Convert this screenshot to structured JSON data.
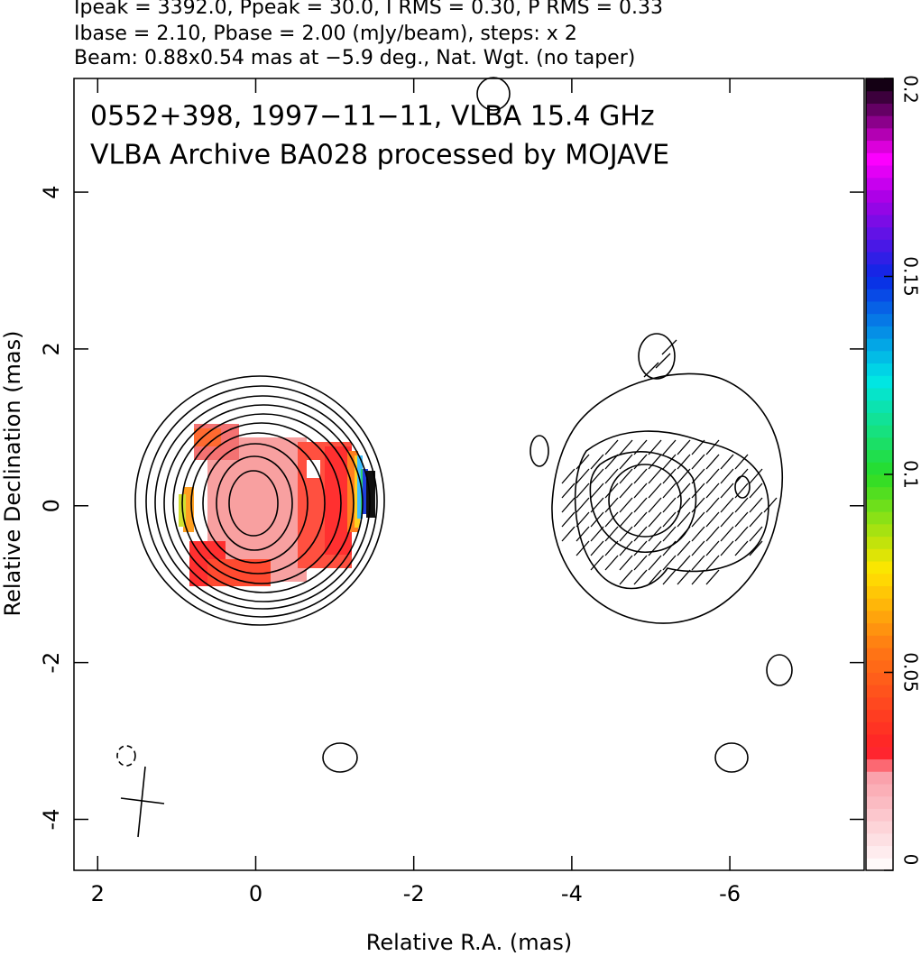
{
  "chart_data": {
    "type": "contour",
    "header": [
      "Ipeak = 3392.0, Ppeak = 30.0, I RMS = 0.30, P RMS = 0.33",
      "Ibase = 2.10, Pbase = 2.00 (mJy/beam), steps: x 2",
      "Beam: 0.88x0.54 mas at −5.9 deg., Nat. Wgt. (no taper)"
    ],
    "annotations": [
      "0552+398, 1997−11−11, VLBA 15.4 GHz",
      "VLBA Archive BA028 processed by MOJAVE"
    ],
    "x_label": "Relative R.A. (mas)",
    "y_label": "Relative Declination (mas)",
    "xlim": [
      2.3,
      -7.7
    ],
    "xticks": [
      2,
      0,
      -2,
      -4,
      -6
    ],
    "ylim": [
      -4.65,
      5.45
    ],
    "yticks": [
      -4,
      -2,
      0,
      2,
      4
    ],
    "colorbar": {
      "lim": [
        0,
        0.2
      ],
      "ticks": [
        0,
        0.05,
        0.1,
        0.15,
        0.2
      ]
    }
  }
}
